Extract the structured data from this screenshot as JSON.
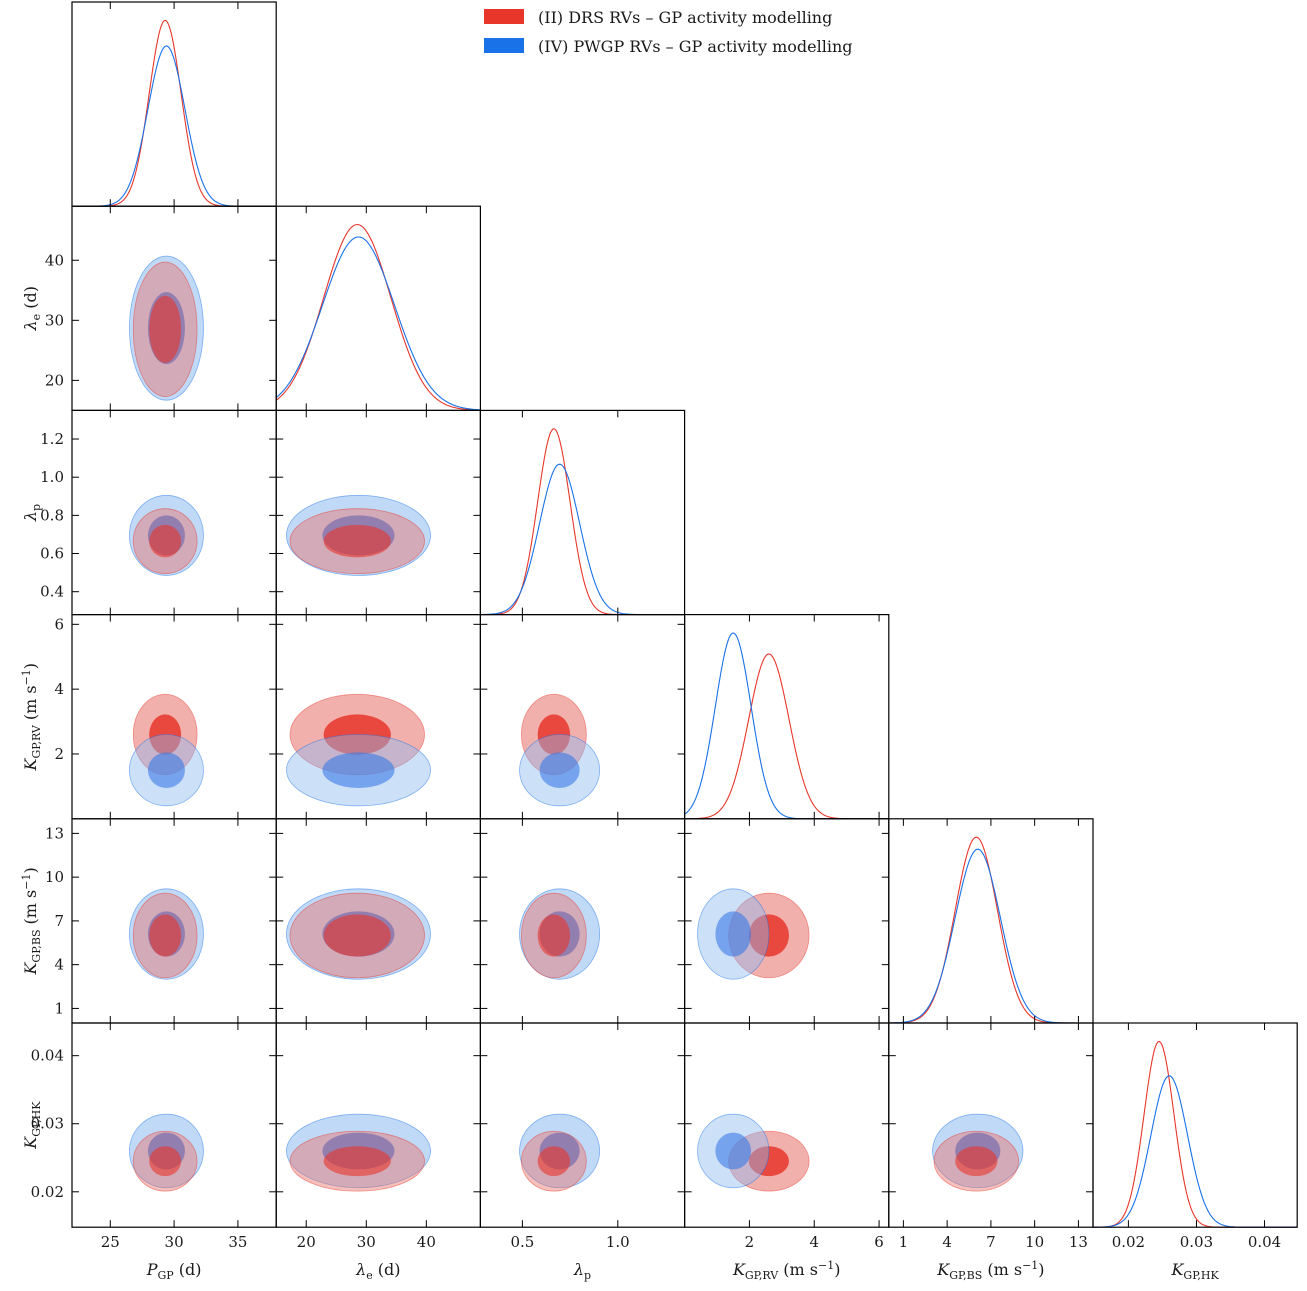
{
  "chart_data": {
    "type": "corner",
    "legend": {
      "placement": "top-right",
      "entries": [
        {
          "label": "(II) DRS RVs – GP activity modelling",
          "color": "#e8362a"
        },
        {
          "label": "(IV) PWGP RVs – GP activity modelling",
          "color": "#1a72e8"
        }
      ]
    },
    "params": [
      {
        "key": "P",
        "label_main": "P",
        "label_sub": "GP",
        "label_unit": "(d)",
        "label_sup": "",
        "label_unit_end": "",
        "range": [
          22,
          38
        ],
        "ticks": [
          25,
          30,
          35
        ],
        "tick_labels": [
          "25",
          "30",
          "35"
        ]
      },
      {
        "key": "le",
        "label_main": "λ",
        "label_sub": "e",
        "label_unit": "(d)",
        "label_sup": "",
        "label_unit_end": "",
        "range": [
          15,
          49
        ],
        "ticks": [
          20,
          30,
          40
        ],
        "tick_labels": [
          "20",
          "30",
          "40"
        ]
      },
      {
        "key": "lp",
        "label_main": "λ",
        "label_sub": "p",
        "label_unit": "",
        "label_sup": "",
        "label_unit_end": "",
        "range": [
          0.28,
          1.35
        ],
        "ticks": [
          0.4,
          0.6,
          0.8,
          1.0,
          1.2
        ],
        "tick_labels": [
          "0.4",
          "0.6",
          "0.8",
          "1.0",
          "1.2"
        ],
        "x_ticks": [
          0.5,
          1.0
        ],
        "x_tick_labels": [
          "0.5",
          "1.0"
        ]
      },
      {
        "key": "Krv",
        "label_main": "K",
        "label_sub": "GP,RV",
        "label_unit": "(m s",
        "label_sup": "−1",
        "label_unit_end": ")",
        "range": [
          0,
          6.3
        ],
        "ticks": [
          2,
          4,
          6
        ],
        "tick_labels": [
          "2",
          "4",
          "6"
        ]
      },
      {
        "key": "Kbs",
        "label_main": "K",
        "label_sub": "GP,BS",
        "label_unit": "(m s",
        "label_sup": "−1",
        "label_unit_end": ")",
        "range": [
          0,
          14
        ],
        "ticks": [
          1,
          4,
          7,
          10,
          13
        ],
        "tick_labels": [
          "1",
          "4",
          "7",
          "10",
          "13"
        ]
      },
      {
        "key": "Khk",
        "label_main": "K",
        "label_sub": "GP,HK",
        "label_unit": "",
        "label_sup": "",
        "label_unit_end": "",
        "range": [
          0.0148,
          0.0448
        ],
        "ticks": [
          0.02,
          0.03,
          0.04
        ],
        "tick_labels": [
          "0.02",
          "0.03",
          "0.04"
        ]
      }
    ],
    "series": [
      {
        "name": "(II) DRS RVs – GP activity modelling",
        "color": "#e8362a",
        "inner_fill": "#e8362a",
        "outer_fill": "#e8706a",
        "mean": {
          "P": 29.3,
          "le": 28.5,
          "lp": 0.665,
          "Krv": 2.6,
          "Kbs": 6.0,
          "Khk": 0.0245
        },
        "sd": {
          "P": 1.25,
          "le": 5.6,
          "lp": 0.085,
          "Krv": 0.62,
          "Kbs": 1.45,
          "Khk": 0.0022
        }
      },
      {
        "name": "(IV) PWGP RVs – GP activity modelling",
        "color": "#1a72e8",
        "inner_fill": "#3a7ae6",
        "outer_fill": "#8dbaf0",
        "mean": {
          "P": 29.4,
          "le": 28.7,
          "lp": 0.695,
          "Krv": 1.5,
          "Kbs": 6.1,
          "Khk": 0.026
        },
        "sd": {
          "P": 1.45,
          "le": 6.0,
          "lp": 0.105,
          "Krv": 0.55,
          "Kbs": 1.55,
          "Khk": 0.0027
        }
      }
    ],
    "grid": false
  }
}
